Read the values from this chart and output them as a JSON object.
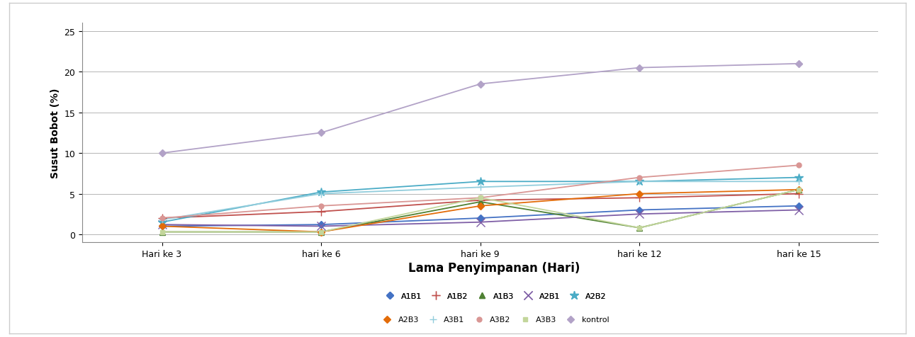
{
  "x_labels": [
    "Hari ke 3",
    "hari ke 6",
    "hari ke 9",
    "hari ke 12",
    "hari ke 15"
  ],
  "x_positions": [
    3,
    6,
    9,
    12,
    15
  ],
  "series": [
    {
      "label": "A1B1",
      "color": "#4472C4",
      "marker": "D",
      "markersize": 5,
      "values": [
        1.0,
        1.2,
        2.0,
        3.0,
        3.5
      ]
    },
    {
      "label": "A1B2",
      "color": "#C0504D",
      "marker": "+",
      "markersize": 8,
      "values": [
        2.0,
        2.8,
        4.2,
        4.5,
        5.0
      ]
    },
    {
      "label": "A1B3",
      "color": "#4F8134",
      "marker": "^",
      "markersize": 6,
      "values": [
        0.3,
        0.3,
        4.0,
        0.8,
        5.5
      ]
    },
    {
      "label": "A2B1",
      "color": "#7F5FA6",
      "marker": "x",
      "markersize": 8,
      "values": [
        1.2,
        1.0,
        1.5,
        2.5,
        3.0
      ]
    },
    {
      "label": "A2B2",
      "color": "#4BACC6",
      "marker": "*",
      "markersize": 9,
      "values": [
        1.5,
        5.2,
        6.5,
        6.5,
        7.0
      ]
    },
    {
      "label": "A2B3",
      "color": "#E36C09",
      "marker": "D",
      "markersize": 5,
      "values": [
        1.0,
        0.3,
        3.5,
        5.0,
        5.5
      ]
    },
    {
      "label": "A3B1",
      "color": "#92CDDC",
      "marker": "+",
      "markersize": 7,
      "values": [
        1.8,
        5.0,
        5.8,
        6.5,
        6.5
      ]
    },
    {
      "label": "A3B2",
      "color": "#D99694",
      "marker": "o",
      "markersize": 5,
      "values": [
        2.0,
        3.5,
        4.5,
        7.0,
        8.5
      ]
    },
    {
      "label": "A3B3",
      "color": "#C3D69B",
      "marker": "s",
      "markersize": 5,
      "values": [
        0.3,
        0.3,
        4.5,
        0.8,
        5.5
      ]
    },
    {
      "label": "kontrol",
      "color": "#B2A2C7",
      "marker": "D",
      "markersize": 5,
      "values": [
        10.0,
        12.5,
        18.5,
        20.5,
        21.0
      ]
    }
  ],
  "ylabel": "Susut Bobot (%)",
  "xlabel": "Lama Penyimpanan (Hari)",
  "ylim": [
    -1,
    26
  ],
  "yticks": [
    0,
    5,
    10,
    15,
    20,
    25
  ],
  "xlabel_fontsize": 12,
  "ylabel_fontsize": 10,
  "legend_fontsize": 8,
  "tick_fontsize": 9,
  "background_color": "#FFFFFF",
  "plot_bg_color": "#FFFFFF",
  "grid_color": "#AAAAAA",
  "outer_frame_color": "#CCCCCC",
  "legend_row1": [
    "A1B1",
    "A1B2",
    "A1B3",
    "A2B1",
    "A2B2"
  ],
  "legend_row2": [
    "A2B3",
    "A3B1",
    "A3B2",
    "A3B3",
    "kontrol"
  ]
}
